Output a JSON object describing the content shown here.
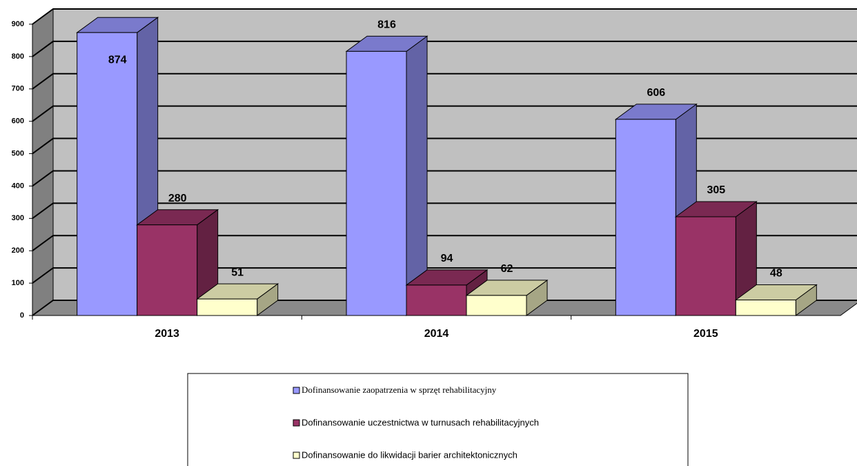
{
  "chart_data": {
    "type": "bar3d",
    "categories": [
      "2013",
      "2014",
      "2015"
    ],
    "series": [
      {
        "name": "Dofinansowanie zaopatrzenia w sprzęt rehabilitacyjny",
        "color": "#9999ff",
        "values": [
          874,
          816,
          606
        ]
      },
      {
        "name": "Dofinansowanie uczestnictwa w turnusach rehabilitacyjnych",
        "color": "#993366",
        "values": [
          280,
          94,
          305
        ]
      },
      {
        "name": "Dofinansowanie do likwidacji barier architektonicznych",
        "color": "#ffffcc",
        "values": [
          51,
          62,
          48
        ]
      }
    ],
    "ylim": [
      0,
      900
    ],
    "yticks": [
      0,
      100,
      200,
      300,
      400,
      500,
      600,
      700,
      800,
      900
    ],
    "grid": true,
    "legend": "bottom"
  }
}
